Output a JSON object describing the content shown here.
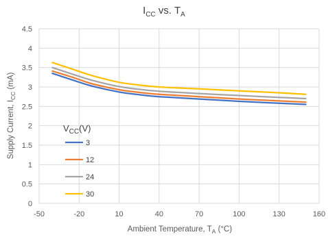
{
  "chart_data": {
    "type": "line",
    "title": {
      "main": "I",
      "sub1": "CC",
      "mid": " vs. T",
      "sub2": "A"
    },
    "xlabel": {
      "main": "Ambient Temperature, T",
      "sub": "A",
      "tail": " (°C)"
    },
    "ylabel": {
      "main": "Supply Current, I",
      "sub": "CC",
      "tail": " (mA)"
    },
    "xlim": [
      -50,
      160
    ],
    "ylim": [
      0,
      4.5
    ],
    "x_ticks": [
      "-50",
      "-20",
      "10",
      "40",
      "70",
      "100",
      "130",
      "160"
    ],
    "y_ticks": [
      "0",
      "0.5",
      "1",
      "1.5",
      "2",
      "2.5",
      "3",
      "3.5",
      "4",
      "4.5"
    ],
    "grid": {
      "x": true,
      "y": true
    },
    "legend": {
      "title_main": "V",
      "title_sub": "CC",
      "title_tail": "(V)",
      "placement": "lower-left"
    },
    "series": [
      {
        "name": "3",
        "color": "#4472C4",
        "x": [
          -40,
          -25,
          -10,
          10,
          25,
          40,
          70,
          100,
          130,
          150
        ],
        "y": [
          3.35,
          3.18,
          3.02,
          2.87,
          2.8,
          2.75,
          2.69,
          2.63,
          2.58,
          2.55
        ]
      },
      {
        "name": "12",
        "color": "#ED7D31",
        "x": [
          -40,
          -25,
          -10,
          10,
          25,
          40,
          70,
          100,
          130,
          150
        ],
        "y": [
          3.41,
          3.25,
          3.08,
          2.93,
          2.86,
          2.81,
          2.75,
          2.69,
          2.64,
          2.61
        ]
      },
      {
        "name": "24",
        "color": "#A5A5A5",
        "x": [
          -40,
          -25,
          -10,
          10,
          25,
          40,
          70,
          100,
          130,
          150
        ],
        "y": [
          3.5,
          3.33,
          3.17,
          3.01,
          2.94,
          2.89,
          2.83,
          2.78,
          2.73,
          2.7
        ]
      },
      {
        "name": "30",
        "color": "#FFC000",
        "x": [
          -40,
          -25,
          -10,
          10,
          25,
          40,
          70,
          100,
          130,
          150
        ],
        "y": [
          3.63,
          3.46,
          3.29,
          3.12,
          3.05,
          3.0,
          2.95,
          2.9,
          2.85,
          2.81
        ]
      }
    ]
  }
}
